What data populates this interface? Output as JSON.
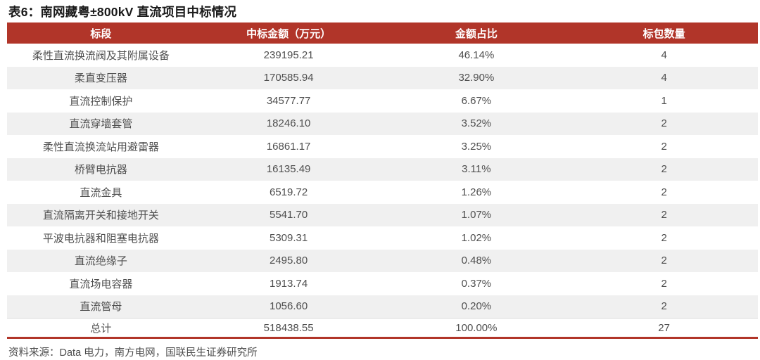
{
  "title": "表6：南网藏粤±800kV 直流项目中标情况",
  "table": {
    "columns": [
      "标段",
      "中标金额（万元）",
      "金额占比",
      "标包数量"
    ],
    "rows": [
      {
        "segment": "柔性直流换流阀及其附属设备",
        "amount": "239195.21",
        "share": "46.14%",
        "packages": "4"
      },
      {
        "segment": "柔直变压器",
        "amount": "170585.94",
        "share": "32.90%",
        "packages": "4"
      },
      {
        "segment": "直流控制保护",
        "amount": "34577.77",
        "share": "6.67%",
        "packages": "1"
      },
      {
        "segment": "直流穿墙套管",
        "amount": "18246.10",
        "share": "3.52%",
        "packages": "2"
      },
      {
        "segment": "柔性直流换流站用避雷器",
        "amount": "16861.17",
        "share": "3.25%",
        "packages": "2"
      },
      {
        "segment": "桥臂电抗器",
        "amount": "16135.49",
        "share": "3.11%",
        "packages": "2"
      },
      {
        "segment": "直流金具",
        "amount": "6519.72",
        "share": "1.26%",
        "packages": "2"
      },
      {
        "segment": "直流隔离开关和接地开关",
        "amount": "5541.70",
        "share": "1.07%",
        "packages": "2"
      },
      {
        "segment": "平波电抗器和阻塞电抗器",
        "amount": "5309.31",
        "share": "1.02%",
        "packages": "2"
      },
      {
        "segment": "直流绝缘子",
        "amount": "2495.80",
        "share": "0.48%",
        "packages": "2"
      },
      {
        "segment": "直流场电容器",
        "amount": "1913.74",
        "share": "0.37%",
        "packages": "2"
      },
      {
        "segment": "直流管母",
        "amount": "1056.60",
        "share": "0.20%",
        "packages": "2"
      }
    ],
    "total": {
      "label": "总计",
      "amount": "518438.55",
      "share": "100.00%",
      "packages": "27"
    }
  },
  "source": "资料来源：Data 电力，南方电网，国联民生证券研究所",
  "colors": {
    "header_bg": "#B13529",
    "header_text": "#ffffff",
    "alt_row_bg": "#F0F0F0",
    "bottom_rule": "#B13529",
    "body_text": "#4f4f4f",
    "title_text": "#1a1a1a"
  }
}
